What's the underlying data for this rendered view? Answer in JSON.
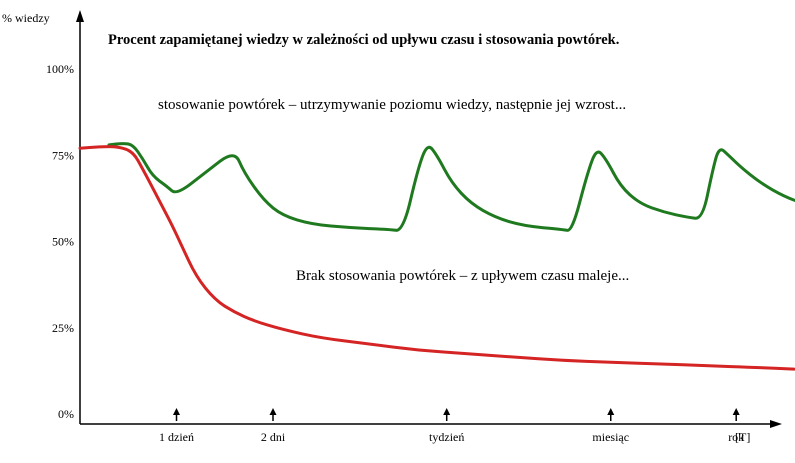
{
  "chart_data": {
    "type": "line",
    "title": "Procent zapamiętanej wiedzy w zależności od upływu czasu i stosowania powtórek.",
    "ylabel": "% wiedzy",
    "xlabel": "[T]",
    "ylim": [
      0,
      100
    ],
    "y_ticks": [
      "100%",
      "75%",
      "50%",
      "25%",
      "0%"
    ],
    "x_ticks": [
      {
        "label": "1 dzień",
        "t": 1
      },
      {
        "label": "2 dni",
        "t": 2
      },
      {
        "label": "tydzień",
        "t": 3.8
      },
      {
        "label": "miesiąc",
        "t": 5.5
      },
      {
        "label": "rok",
        "t": 6.8
      }
    ],
    "grid": false,
    "annotations": [
      "stosowanie powtórek – utrzymywanie poziomu wiedzy, następnie jej wzrost...",
      "Brak stosowania powtórek – z upływem czasu maleje..."
    ],
    "series": [
      {
        "color": "#1f7a1f",
        "points": [
          [
            0.3,
            78
          ],
          [
            0.45,
            78.5
          ],
          [
            0.55,
            78
          ],
          [
            0.65,
            74
          ],
          [
            0.75,
            69
          ],
          [
            0.9,
            66
          ],
          [
            1.0,
            63.5
          ],
          [
            1.3,
            70
          ],
          [
            1.6,
            76.5
          ],
          [
            1.7,
            70
          ],
          [
            1.9,
            62
          ],
          [
            2.1,
            57.5
          ],
          [
            2.4,
            55
          ],
          [
            2.8,
            54
          ],
          [
            3.2,
            53.5
          ],
          [
            3.35,
            53
          ],
          [
            3.5,
            71
          ],
          [
            3.6,
            78.5
          ],
          [
            3.7,
            75
          ],
          [
            3.85,
            67
          ],
          [
            4.05,
            61
          ],
          [
            4.3,
            57
          ],
          [
            4.6,
            54.5
          ],
          [
            5.0,
            53.5
          ],
          [
            5.1,
            53
          ],
          [
            5.25,
            69
          ],
          [
            5.35,
            77
          ],
          [
            5.45,
            74
          ],
          [
            5.6,
            66
          ],
          [
            5.8,
            61
          ],
          [
            6.05,
            58.5
          ],
          [
            6.3,
            57
          ],
          [
            6.45,
            56.5
          ],
          [
            6.55,
            70
          ],
          [
            6.62,
            77.5
          ],
          [
            6.72,
            75
          ],
          [
            6.85,
            71.5
          ],
          [
            7.05,
            67
          ],
          [
            7.3,
            63
          ],
          [
            7.5,
            61
          ],
          [
            7.65,
            62
          ]
        ]
      },
      {
        "color": "#d42424",
        "points": [
          [
            0,
            77
          ],
          [
            0.2,
            77.5
          ],
          [
            0.4,
            77.5
          ],
          [
            0.55,
            76
          ],
          [
            0.65,
            71
          ],
          [
            0.8,
            63
          ],
          [
            0.95,
            55
          ],
          [
            1.05,
            49
          ],
          [
            1.2,
            40
          ],
          [
            1.4,
            33
          ],
          [
            1.6,
            29.5
          ],
          [
            1.8,
            27
          ],
          [
            2.1,
            24.5
          ],
          [
            2.5,
            22
          ],
          [
            3.0,
            20.3
          ],
          [
            3.5,
            18.5
          ],
          [
            4.0,
            17.5
          ],
          [
            4.5,
            16.5
          ],
          [
            5.0,
            15.5
          ],
          [
            5.5,
            15
          ],
          [
            6.0,
            14.5
          ],
          [
            6.5,
            14
          ],
          [
            7.0,
            13.5
          ],
          [
            7.4,
            13
          ]
        ]
      }
    ]
  }
}
